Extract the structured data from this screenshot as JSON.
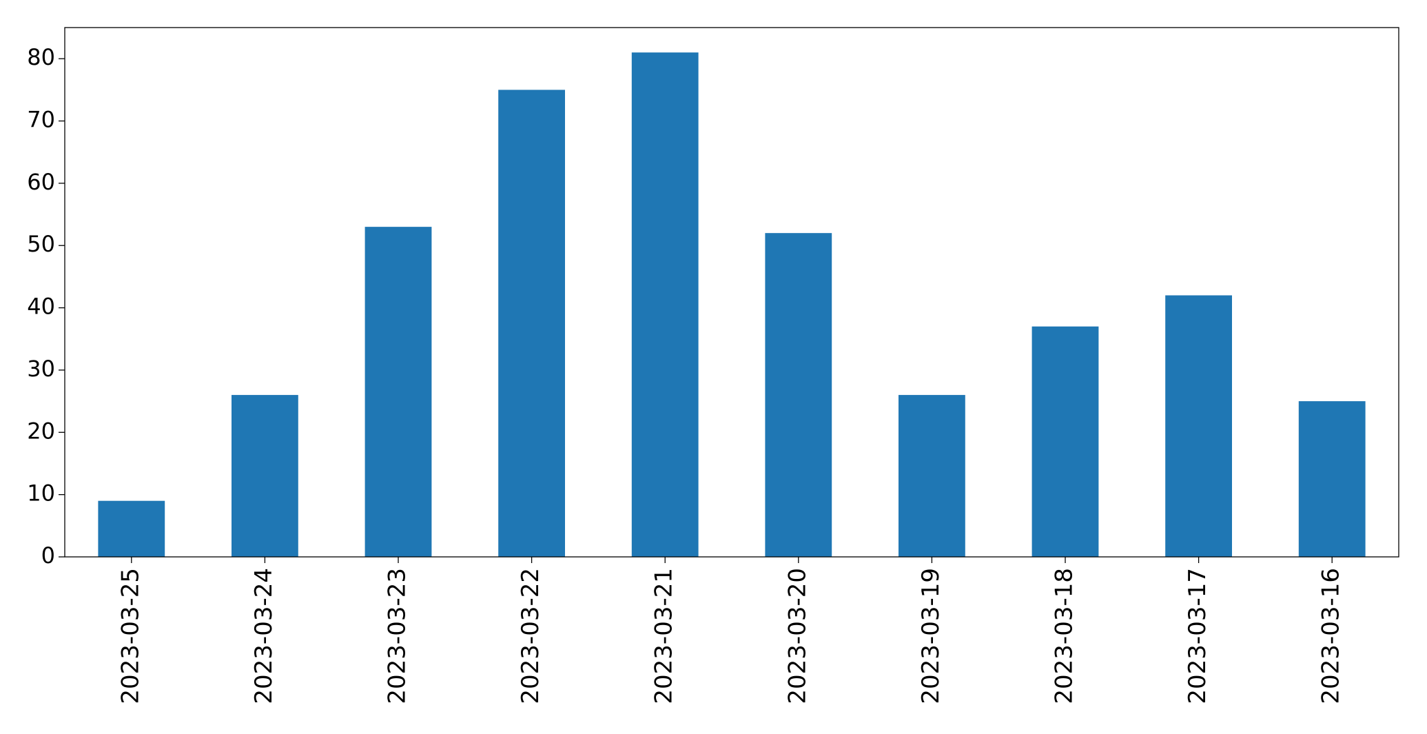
{
  "chart_data": {
    "type": "bar",
    "categories": [
      "2023-03-25",
      "2023-03-24",
      "2023-03-23",
      "2023-03-22",
      "2023-03-21",
      "2023-03-20",
      "2023-03-19",
      "2023-03-18",
      "2023-03-17",
      "2023-03-16"
    ],
    "values": [
      9,
      26,
      53,
      75,
      81,
      52,
      26,
      37,
      42,
      25
    ],
    "color": "#1f77b4",
    "ylim": [
      0,
      85
    ],
    "yticks": [
      0,
      10,
      20,
      30,
      40,
      50,
      60,
      70,
      80
    ],
    "grid": false
  }
}
